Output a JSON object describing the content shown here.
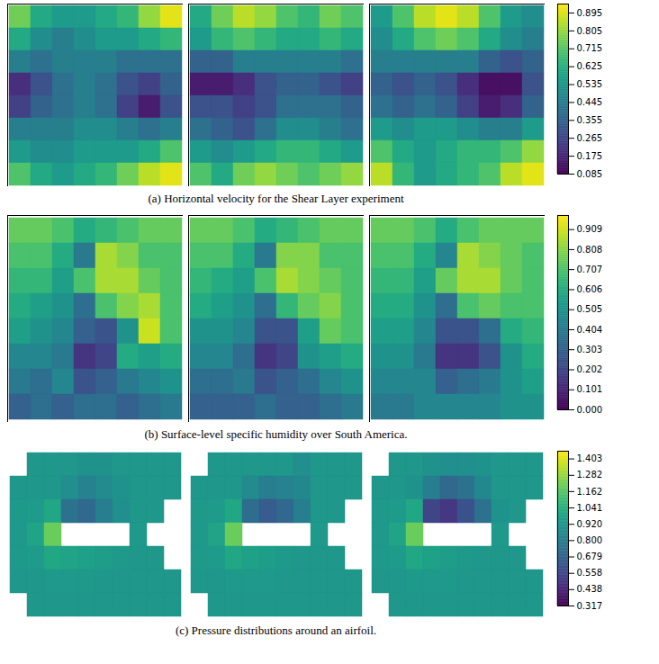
{
  "chart_data": [
    {
      "type": "heatmap",
      "title": "(a) Horizontal velocity for the Shear Layer experiment",
      "color": "viridis",
      "tick_labels": false,
      "color_range": [
        0.085,
        0.94
      ],
      "color_ticks": [
        0.085,
        0.175,
        0.265,
        0.355,
        0.445,
        0.535,
        0.625,
        0.715,
        0.805,
        0.895
      ],
      "cells": [
        [
          [
            0.75,
            0.6,
            0.55,
            0.55,
            0.6,
            0.65,
            0.8,
            0.9
          ],
          [
            0.6,
            0.5,
            0.45,
            0.5,
            0.55,
            0.55,
            0.6,
            0.65
          ],
          [
            0.45,
            0.4,
            0.45,
            0.45,
            0.45,
            0.4,
            0.4,
            0.4
          ],
          [
            0.2,
            0.3,
            0.4,
            0.45,
            0.4,
            0.3,
            0.25,
            0.35
          ],
          [
            0.25,
            0.35,
            0.4,
            0.45,
            0.4,
            0.25,
            0.15,
            0.3
          ],
          [
            0.45,
            0.45,
            0.45,
            0.5,
            0.5,
            0.45,
            0.4,
            0.45
          ],
          [
            0.55,
            0.5,
            0.5,
            0.55,
            0.55,
            0.55,
            0.6,
            0.7
          ],
          [
            0.7,
            0.6,
            0.55,
            0.6,
            0.65,
            0.75,
            0.85,
            0.9
          ]
        ],
        [
          [
            0.6,
            0.75,
            0.85,
            0.8,
            0.7,
            0.65,
            0.75,
            0.7
          ],
          [
            0.55,
            0.65,
            0.7,
            0.65,
            0.6,
            0.6,
            0.65,
            0.6
          ],
          [
            0.35,
            0.35,
            0.45,
            0.45,
            0.45,
            0.45,
            0.45,
            0.4
          ],
          [
            0.15,
            0.15,
            0.2,
            0.3,
            0.35,
            0.35,
            0.3,
            0.25
          ],
          [
            0.3,
            0.3,
            0.25,
            0.3,
            0.4,
            0.4,
            0.4,
            0.35
          ],
          [
            0.4,
            0.35,
            0.3,
            0.4,
            0.5,
            0.5,
            0.45,
            0.4
          ],
          [
            0.55,
            0.5,
            0.55,
            0.6,
            0.65,
            0.65,
            0.6,
            0.55
          ],
          [
            0.7,
            0.6,
            0.75,
            0.8,
            0.75,
            0.7,
            0.75,
            0.8
          ]
        ],
        [
          [
            0.55,
            0.7,
            0.85,
            0.9,
            0.85,
            0.7,
            0.55,
            0.5
          ],
          [
            0.5,
            0.6,
            0.7,
            0.75,
            0.7,
            0.6,
            0.5,
            0.45
          ],
          [
            0.45,
            0.45,
            0.45,
            0.45,
            0.45,
            0.35,
            0.3,
            0.35
          ],
          [
            0.35,
            0.3,
            0.35,
            0.3,
            0.2,
            0.12,
            0.12,
            0.3
          ],
          [
            0.4,
            0.35,
            0.4,
            0.35,
            0.25,
            0.15,
            0.2,
            0.35
          ],
          [
            0.55,
            0.5,
            0.55,
            0.55,
            0.5,
            0.45,
            0.45,
            0.55
          ],
          [
            0.7,
            0.6,
            0.55,
            0.6,
            0.65,
            0.65,
            0.7,
            0.8
          ],
          [
            0.85,
            0.65,
            0.55,
            0.6,
            0.65,
            0.7,
            0.85,
            0.9
          ]
        ]
      ]
    },
    {
      "type": "heatmap",
      "title": "(b) Surface-level specific humidity over South America.",
      "color": "viridis",
      "tick_labels": false,
      "color_range": [
        0,
        0.98
      ],
      "color_ticks": [
        {
          "value": 0,
          "label": "0.000"
        },
        0.101,
        0.202,
        0.303,
        0.404,
        0.505,
        0.606,
        0.707,
        0.808,
        0.909
      ],
      "cells": [
        [
          [
            0.75,
            0.75,
            0.7,
            0.6,
            0.65,
            0.7,
            0.75,
            0.75
          ],
          [
            0.7,
            0.7,
            0.6,
            0.4,
            0.85,
            0.8,
            0.7,
            0.7
          ],
          [
            0.65,
            0.65,
            0.55,
            0.7,
            0.85,
            0.85,
            0.75,
            0.7
          ],
          [
            0.6,
            0.55,
            0.5,
            0.35,
            0.7,
            0.8,
            0.85,
            0.7
          ],
          [
            0.55,
            0.5,
            0.45,
            0.3,
            0.25,
            0.5,
            0.9,
            0.7
          ],
          [
            0.45,
            0.45,
            0.4,
            0.15,
            0.2,
            0.6,
            0.55,
            0.6
          ],
          [
            0.4,
            0.35,
            0.45,
            0.25,
            0.3,
            0.4,
            0.45,
            0.5
          ],
          [
            0.3,
            0.35,
            0.3,
            0.35,
            0.35,
            0.3,
            0.35,
            0.4
          ]
        ],
        [
          [
            0.75,
            0.75,
            0.7,
            0.6,
            0.65,
            0.7,
            0.75,
            0.75
          ],
          [
            0.7,
            0.7,
            0.6,
            0.4,
            0.8,
            0.8,
            0.7,
            0.7
          ],
          [
            0.65,
            0.6,
            0.55,
            0.7,
            0.85,
            0.8,
            0.75,
            0.7
          ],
          [
            0.6,
            0.55,
            0.5,
            0.35,
            0.65,
            0.75,
            0.8,
            0.7
          ],
          [
            0.5,
            0.5,
            0.45,
            0.25,
            0.25,
            0.55,
            0.75,
            0.7
          ],
          [
            0.45,
            0.45,
            0.35,
            0.15,
            0.2,
            0.5,
            0.55,
            0.6
          ],
          [
            0.35,
            0.35,
            0.4,
            0.25,
            0.3,
            0.35,
            0.45,
            0.5
          ],
          [
            0.3,
            0.3,
            0.3,
            0.35,
            0.3,
            0.3,
            0.35,
            0.4
          ]
        ],
        [
          [
            0.75,
            0.75,
            0.7,
            0.6,
            0.7,
            0.75,
            0.75,
            0.75
          ],
          [
            0.7,
            0.7,
            0.6,
            0.45,
            0.85,
            0.8,
            0.75,
            0.7
          ],
          [
            0.65,
            0.65,
            0.55,
            0.75,
            0.85,
            0.85,
            0.75,
            0.7
          ],
          [
            0.6,
            0.6,
            0.5,
            0.35,
            0.7,
            0.75,
            0.7,
            0.7
          ],
          [
            0.55,
            0.55,
            0.45,
            0.25,
            0.25,
            0.35,
            0.6,
            0.65
          ],
          [
            0.5,
            0.5,
            0.4,
            0.15,
            0.15,
            0.25,
            0.5,
            0.6
          ],
          [
            0.45,
            0.45,
            0.45,
            0.3,
            0.35,
            0.4,
            0.5,
            0.55
          ],
          [
            0.4,
            0.4,
            0.45,
            0.45,
            0.45,
            0.45,
            0.5,
            0.5
          ]
        ]
      ]
    },
    {
      "type": "heatmap",
      "title": "(c) Pressure distributions around an airfoil.",
      "color": "viridis",
      "tick_labels": false,
      "color_range": [
        0.317,
        1.46
      ],
      "color_ticks": [
        0.317,
        0.438,
        0.558,
        0.679,
        {
          "value": 0.8,
          "label": "0.800"
        },
        {
          "value": 0.92,
          "label": "0.920"
        },
        1.041,
        1.162,
        1.282,
        1.403
      ],
      "cells": [
        [
          [
            null,
            0.92,
            0.92,
            0.92,
            0.9,
            0.9,
            0.92,
            0.92,
            0.92,
            0.92
          ],
          [
            0.92,
            0.92,
            0.92,
            0.88,
            0.82,
            0.86,
            0.9,
            0.92,
            0.92,
            0.92
          ],
          [
            0.93,
            0.94,
            1.0,
            0.75,
            0.7,
            0.8,
            0.88,
            0.92,
            0.92,
            null
          ],
          [
            0.93,
            0.98,
            1.2,
            null,
            null,
            null,
            null,
            0.93,
            null,
            null
          ],
          [
            0.93,
            0.94,
            1.0,
            0.98,
            0.96,
            0.95,
            0.93,
            0.92,
            0.92,
            null
          ],
          [
            0.92,
            0.92,
            0.93,
            0.93,
            0.93,
            0.92,
            0.92,
            0.92,
            0.92,
            0.92
          ],
          [
            null,
            0.92,
            0.92,
            0.92,
            0.92,
            0.92,
            0.92,
            0.92,
            0.92,
            0.92
          ]
        ],
        [
          [
            null,
            0.92,
            0.92,
            0.92,
            0.92,
            0.92,
            0.88,
            0.92,
            0.92,
            0.92
          ],
          [
            0.92,
            0.92,
            0.92,
            0.86,
            0.8,
            0.82,
            0.85,
            0.92,
            0.92,
            0.92
          ],
          [
            0.93,
            0.94,
            1.0,
            0.72,
            0.65,
            0.7,
            0.8,
            0.92,
            0.92,
            null
          ],
          [
            0.93,
            0.98,
            1.2,
            null,
            null,
            null,
            null,
            0.93,
            null,
            null
          ],
          [
            0.93,
            0.94,
            1.0,
            0.97,
            0.95,
            0.93,
            0.92,
            0.92,
            0.92,
            null
          ],
          [
            0.92,
            0.92,
            0.93,
            0.93,
            0.93,
            0.92,
            0.92,
            0.92,
            0.92,
            0.92
          ],
          [
            null,
            0.92,
            0.92,
            0.92,
            0.92,
            0.92,
            0.92,
            0.92,
            0.92,
            0.92
          ]
        ],
        [
          [
            null,
            0.92,
            0.92,
            0.9,
            0.88,
            0.88,
            0.9,
            0.92,
            0.92,
            0.92
          ],
          [
            0.92,
            0.92,
            0.9,
            0.8,
            0.7,
            0.75,
            0.85,
            0.92,
            0.92,
            0.92
          ],
          [
            0.93,
            0.94,
            1.0,
            0.55,
            0.5,
            0.6,
            0.75,
            0.9,
            0.92,
            null
          ],
          [
            0.93,
            0.98,
            1.2,
            null,
            null,
            null,
            null,
            0.93,
            null,
            null
          ],
          [
            0.93,
            0.94,
            1.0,
            0.97,
            0.95,
            0.93,
            0.92,
            0.92,
            0.92,
            null
          ],
          [
            0.92,
            0.92,
            0.93,
            0.93,
            0.93,
            0.92,
            0.92,
            0.92,
            0.92,
            0.92
          ],
          [
            null,
            0.92,
            0.92,
            0.92,
            0.92,
            0.92,
            0.92,
            0.92,
            0.92,
            0.92
          ]
        ]
      ]
    }
  ]
}
